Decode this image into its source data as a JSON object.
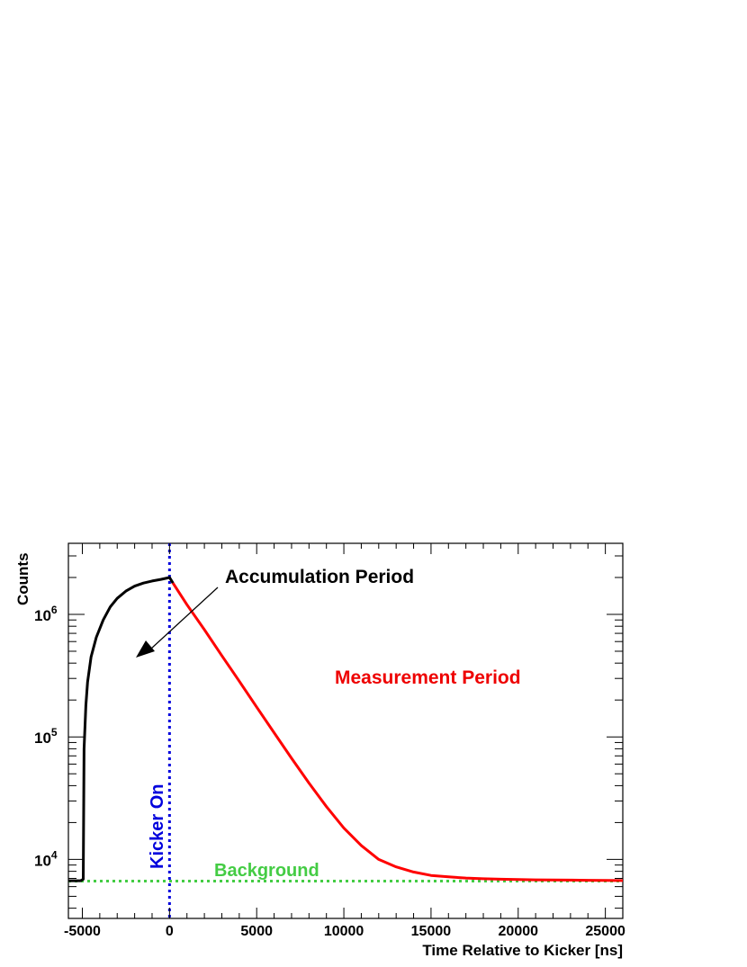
{
  "chart_data": {
    "type": "line",
    "xlabel": "Time Relative to Kicker [ns]",
    "ylabel": "Counts",
    "xlim": [
      -5800,
      26000
    ],
    "ylim": [
      3300,
      3800000
    ],
    "yscale": "log",
    "grid": false,
    "x_ticks": [
      -5000,
      0,
      5000,
      10000,
      15000,
      20000,
      25000
    ],
    "x_tick_labels": [
      "-5000",
      "0",
      "5000",
      "10000",
      "15000",
      "20000",
      "25000"
    ],
    "y_ticks": [
      {
        "value": 10000,
        "base": "10",
        "exp": "4"
      },
      {
        "value": 100000,
        "base": "10",
        "exp": "5"
      },
      {
        "value": 1000000,
        "base": "10",
        "exp": "6"
      }
    ],
    "series": [
      {
        "color": "#000000",
        "x": [
          -5800,
          -5100,
          -4950,
          -4900,
          -4800,
          -4700,
          -4500,
          -4200,
          -3800,
          -3400,
          -3000,
          -2500,
          -2000,
          -1500,
          -1000,
          -500,
          0,
          200
        ],
        "y": [
          6700,
          6700,
          6900,
          80000,
          180000,
          280000,
          450000,
          650000,
          900000,
          1150000,
          1350000,
          1550000,
          1700000,
          1800000,
          1870000,
          1930000,
          2000000,
          1800000
        ]
      },
      {
        "color": "#ff0000",
        "x": [
          200,
          1000,
          2000,
          3000,
          4000,
          5000,
          6000,
          7000,
          8000,
          9000,
          10000,
          11000,
          12000,
          13000,
          14000,
          15000,
          16000,
          17000,
          18000,
          19000,
          20000,
          21000,
          22000,
          23000,
          24000,
          25000,
          26000
        ],
        "y": [
          1800000,
          1200000,
          750000,
          460000,
          285000,
          175000,
          108000,
          67000,
          42000,
          27000,
          18000,
          13000,
          10000,
          8700,
          7900,
          7400,
          7200,
          7050,
          6950,
          6900,
          6850,
          6820,
          6800,
          6780,
          6760,
          6740,
          6720
        ]
      }
    ],
    "reference_lines": [
      {
        "orientation": "vertical",
        "x": 0,
        "color": "#0000dd",
        "style": "dotted",
        "label": "Kicker On"
      },
      {
        "orientation": "horizontal",
        "y": 6650,
        "color": "#44cc44",
        "style": "dotted",
        "label": "Background"
      }
    ],
    "annotations": [
      {
        "text": "Accumulation Period",
        "color": "#000000",
        "arrow": true
      },
      {
        "text": "Measurement Period",
        "color": "#ee0000"
      }
    ]
  }
}
